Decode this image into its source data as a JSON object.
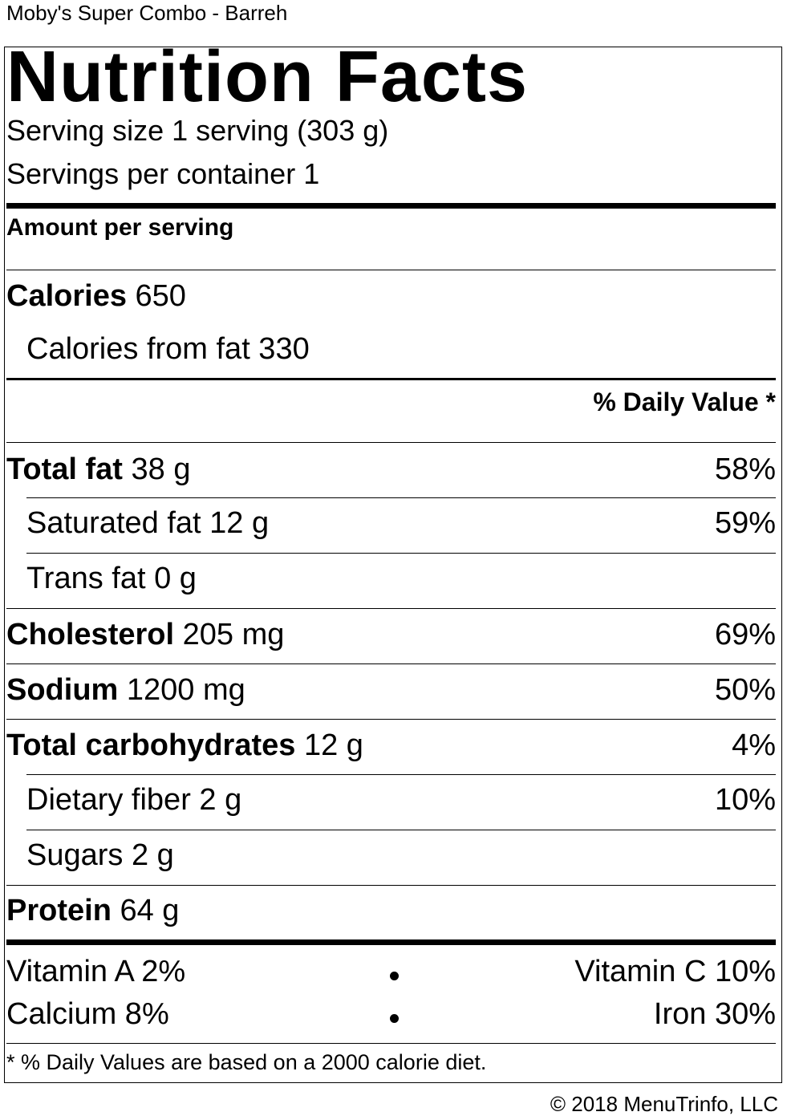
{
  "product_title": "Moby's Super Combo - Barreh",
  "heading": "Nutrition Facts",
  "serving_size": "Serving size 1 serving (303 g)",
  "servings_per_container": "Servings per container 1",
  "amount_per_serving": "Amount per serving",
  "calories": {
    "label": "Calories",
    "value": "650"
  },
  "calories_from_fat": "Calories from fat 330",
  "daily_value_header": "% Daily Value *",
  "nutrients": {
    "total_fat": {
      "label": "Total fat",
      "amount": "38 g",
      "dv": "58%"
    },
    "saturated_fat": {
      "label": "Saturated fat 12 g",
      "dv": "59%"
    },
    "trans_fat": {
      "label": "Trans fat 0 g"
    },
    "cholesterol": {
      "label": "Cholesterol",
      "amount": "205 mg",
      "dv": "69%"
    },
    "sodium": {
      "label": "Sodium",
      "amount": "1200 mg",
      "dv": "50%"
    },
    "total_carbs": {
      "label": "Total carbohydrates",
      "amount": "12 g",
      "dv": "4%"
    },
    "dietary_fiber": {
      "label": "Dietary fiber 2 g",
      "dv": "10%"
    },
    "sugars": {
      "label": "Sugars 2 g"
    },
    "protein": {
      "label": "Protein",
      "amount": "64 g"
    }
  },
  "vitamins": {
    "vitamin_a": "Vitamin A 2%",
    "vitamin_c": "Vitamin C 10%",
    "calcium": "Calcium 8%",
    "iron": "Iron 30%"
  },
  "footnote": "* % Daily Values are based on a 2000 calorie diet.",
  "copyright": "© 2018 MenuTrinfo, LLC"
}
